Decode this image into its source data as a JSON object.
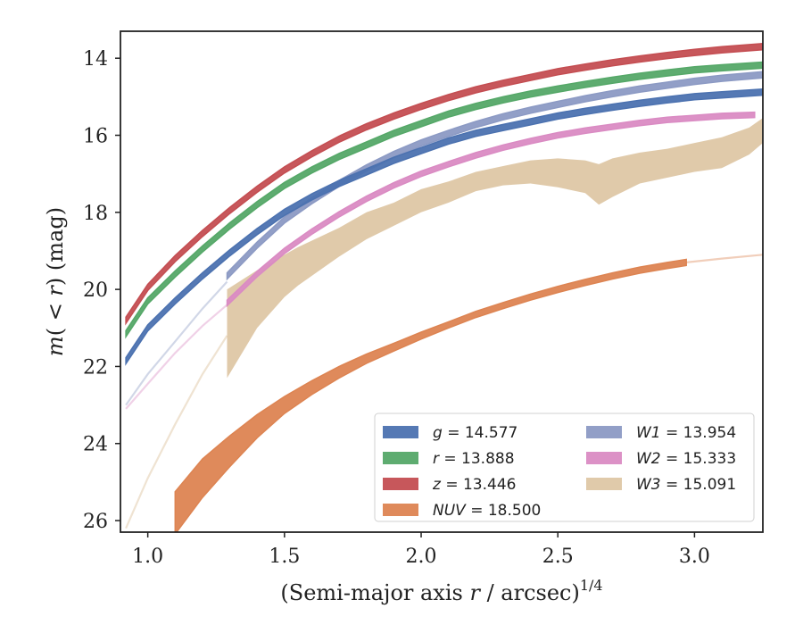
{
  "chart_data": {
    "type": "area",
    "xlabel": "(Semi-major axis r / arcsec)^{1/4}",
    "ylabel": "m(<r) (mag)",
    "xlim": [
      0.9,
      3.25
    ],
    "ylim": [
      26.3,
      13.3
    ],
    "y_inverted": true,
    "grid": false,
    "legend_placement": "bottom-right",
    "xticks": [
      "1.0",
      "1.5",
      "2.0",
      "2.5",
      "3.0"
    ],
    "yticks": [
      "14",
      "16",
      "18",
      "20",
      "22",
      "24",
      "26"
    ],
    "legend_columns": 2,
    "series": [
      {
        "name": "g = 14.577",
        "label_italic": "g",
        "label_value": "= 14.577",
        "color": "#4c72b0",
        "x": [
          0.92,
          1.0,
          1.1,
          1.2,
          1.3,
          1.4,
          1.5,
          1.6,
          1.7,
          1.8,
          1.9,
          2.0,
          2.1,
          2.2,
          2.3,
          2.4,
          2.5,
          2.6,
          2.7,
          2.8,
          2.9,
          3.0,
          3.1,
          3.25
        ],
        "y": [
          21.85,
          21.0,
          20.3,
          19.65,
          19.05,
          18.5,
          18.0,
          17.6,
          17.25,
          16.95,
          16.65,
          16.4,
          16.15,
          15.95,
          15.8,
          15.65,
          15.5,
          15.38,
          15.27,
          15.17,
          15.08,
          15.0,
          14.95,
          14.88
        ],
        "halfwidth": 0.08,
        "extent_x": [
          0.92,
          3.25
        ]
      },
      {
        "name": "r = 13.888",
        "label_italic": "r",
        "label_value": "= 13.888",
        "color": "#55a868",
        "x": [
          0.92,
          1.0,
          1.1,
          1.2,
          1.3,
          1.4,
          1.5,
          1.6,
          1.7,
          1.8,
          1.9,
          2.0,
          2.1,
          2.2,
          2.3,
          2.4,
          2.5,
          2.6,
          2.7,
          2.8,
          2.9,
          3.0,
          3.1,
          3.25
        ],
        "y": [
          21.15,
          20.3,
          19.6,
          18.95,
          18.35,
          17.8,
          17.3,
          16.9,
          16.55,
          16.25,
          15.95,
          15.7,
          15.45,
          15.25,
          15.08,
          14.93,
          14.8,
          14.68,
          14.57,
          14.47,
          14.38,
          14.3,
          14.25,
          14.18
        ],
        "halfwidth": 0.08,
        "extent_x": [
          0.92,
          3.25
        ]
      },
      {
        "name": "z = 13.446",
        "label_italic": "z",
        "label_value": "= 13.446",
        "color": "#c44e52",
        "x": [
          0.92,
          1.0,
          1.1,
          1.2,
          1.3,
          1.4,
          1.5,
          1.6,
          1.7,
          1.8,
          1.9,
          2.0,
          2.1,
          2.2,
          2.3,
          2.4,
          2.5,
          2.6,
          2.7,
          2.8,
          2.9,
          3.0,
          3.1,
          3.25
        ],
        "y": [
          20.8,
          19.95,
          19.2,
          18.55,
          17.95,
          17.4,
          16.9,
          16.48,
          16.1,
          15.78,
          15.5,
          15.25,
          15.02,
          14.82,
          14.65,
          14.5,
          14.35,
          14.23,
          14.12,
          14.02,
          13.93,
          13.85,
          13.78,
          13.7
        ],
        "halfwidth": 0.08,
        "extent_x": [
          0.92,
          3.25
        ]
      },
      {
        "name": "NUV = 18.500",
        "label_italic": "NUV",
        "label_value": "= 18.500",
        "color": "#dd8452",
        "x": [
          1.1,
          1.2,
          1.3,
          1.4,
          1.5,
          1.6,
          1.7,
          1.8,
          1.9,
          2.0,
          2.1,
          2.2,
          2.3,
          2.4,
          2.5,
          2.6,
          2.7,
          2.8,
          2.9,
          2.97
        ],
        "y": [
          25.8,
          24.9,
          24.2,
          23.55,
          23.0,
          22.55,
          22.15,
          21.8,
          21.5,
          21.2,
          20.92,
          20.65,
          20.42,
          20.2,
          20.0,
          19.82,
          19.65,
          19.5,
          19.38,
          19.3
        ],
        "halfwidth": [
          0.55,
          0.5,
          0.4,
          0.3,
          0.22,
          0.18,
          0.15,
          0.12,
          0.1,
          0.09,
          0.08,
          0.08,
          0.08,
          0.08,
          0.08,
          0.08,
          0.08,
          0.08,
          0.08,
          0.08
        ],
        "extent_x": [
          1.1,
          2.97
        ]
      },
      {
        "name": "W1 = 13.954",
        "label_italic": "W1",
        "label_value": "= 13.954",
        "color": "#8c9ac4",
        "x": [
          1.29,
          1.4,
          1.5,
          1.6,
          1.7,
          1.8,
          1.9,
          2.0,
          2.1,
          2.2,
          2.3,
          2.4,
          2.5,
          2.6,
          2.7,
          2.8,
          2.9,
          3.0,
          3.1,
          3.25
        ],
        "y": [
          19.65,
          18.85,
          18.2,
          17.7,
          17.25,
          16.85,
          16.5,
          16.2,
          15.95,
          15.72,
          15.52,
          15.35,
          15.2,
          15.05,
          14.92,
          14.8,
          14.7,
          14.6,
          14.52,
          14.43
        ],
        "halfwidth": 0.08,
        "extent_x": [
          1.29,
          3.25
        ]
      },
      {
        "name": "W2 = 15.333",
        "label_italic": "W2",
        "label_value": "= 15.333",
        "color": "#da8bc3",
        "x": [
          1.29,
          1.4,
          1.5,
          1.6,
          1.7,
          1.8,
          1.9,
          2.0,
          2.1,
          2.2,
          2.3,
          2.4,
          2.5,
          2.6,
          2.7,
          2.8,
          2.9,
          3.0,
          3.1,
          3.22
        ],
        "y": [
          20.35,
          19.6,
          19.0,
          18.5,
          18.05,
          17.65,
          17.3,
          17.0,
          16.75,
          16.52,
          16.32,
          16.15,
          16.0,
          15.88,
          15.78,
          15.68,
          15.6,
          15.55,
          15.5,
          15.47
        ],
        "halfwidth": 0.07,
        "extent_x": [
          1.29,
          3.22
        ]
      },
      {
        "name": "W3 = 15.091",
        "label_italic": "W3",
        "label_value": "= 15.091",
        "color": "#d6b88e",
        "x": [
          1.29,
          1.4,
          1.5,
          1.55,
          1.7,
          1.8,
          1.9,
          2.0,
          2.1,
          2.2,
          2.3,
          2.4,
          2.5,
          2.6,
          2.65,
          2.7,
          2.8,
          2.9,
          3.0,
          3.1,
          3.2,
          3.25
        ],
        "y_upper": [
          20.0,
          19.5,
          19.1,
          18.9,
          18.4,
          18.0,
          17.75,
          17.4,
          17.2,
          16.95,
          16.8,
          16.65,
          16.6,
          16.65,
          16.75,
          16.6,
          16.45,
          16.35,
          16.2,
          16.05,
          15.8,
          15.55
        ],
        "y_lower": [
          22.3,
          21.0,
          20.2,
          19.9,
          19.15,
          18.7,
          18.35,
          18.0,
          17.75,
          17.45,
          17.3,
          17.25,
          17.35,
          17.5,
          17.8,
          17.6,
          17.25,
          17.1,
          16.95,
          16.85,
          16.5,
          16.2
        ],
        "extent_x": [
          1.29,
          3.25
        ]
      }
    ],
    "faint_extensions": [
      {
        "series": "NUV = 18.500",
        "color": "#dd8452",
        "x": [
          2.97,
          3.1,
          3.25
        ],
        "y": [
          19.3,
          19.2,
          19.1
        ]
      },
      {
        "series": "W1 = 13.954",
        "color": "#8c9ac4",
        "x": [
          0.92,
          1.0,
          1.1,
          1.2,
          1.29
        ],
        "y": [
          23.0,
          22.2,
          21.35,
          20.5,
          19.8
        ]
      },
      {
        "series": "W2 = 15.333",
        "color": "#da8bc3",
        "x": [
          0.92,
          1.0,
          1.1,
          1.2,
          1.29
        ],
        "y": [
          23.1,
          22.45,
          21.65,
          20.95,
          20.4
        ]
      },
      {
        "series": "W3 = 15.091",
        "color": "#d6b88e",
        "x": [
          0.92,
          1.0,
          1.1,
          1.2,
          1.29
        ],
        "y": [
          26.2,
          24.9,
          23.5,
          22.2,
          21.2
        ]
      }
    ]
  }
}
